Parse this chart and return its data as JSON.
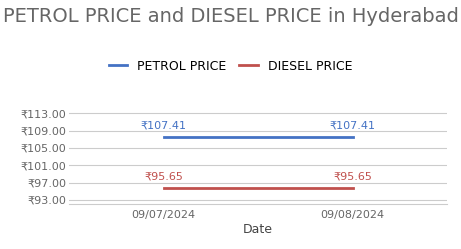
{
  "title": "PETROL PRICE and DIESEL PRICE in Hyderabad",
  "xlabel": "Date",
  "dates": [
    "09/07/2024",
    "09/08/2024"
  ],
  "petrol_values": [
    107.41,
    107.41
  ],
  "diesel_values": [
    95.65,
    95.65
  ],
  "petrol_color": "#4472C4",
  "diesel_color": "#C0504D",
  "ylim": [
    92.0,
    115.0
  ],
  "yticks": [
    93.0,
    97.0,
    101.0,
    105.0,
    109.0,
    113.0
  ],
  "legend_petrol": "PETROL PRICE",
  "legend_diesel": "DIESEL PRICE",
  "background_color": "#ffffff",
  "grid_color": "#cccccc",
  "title_fontsize": 14,
  "label_fontsize": 9,
  "tick_fontsize": 8,
  "annotation_fontsize": 8,
  "title_color": "#666666",
  "tick_color": "#666666"
}
